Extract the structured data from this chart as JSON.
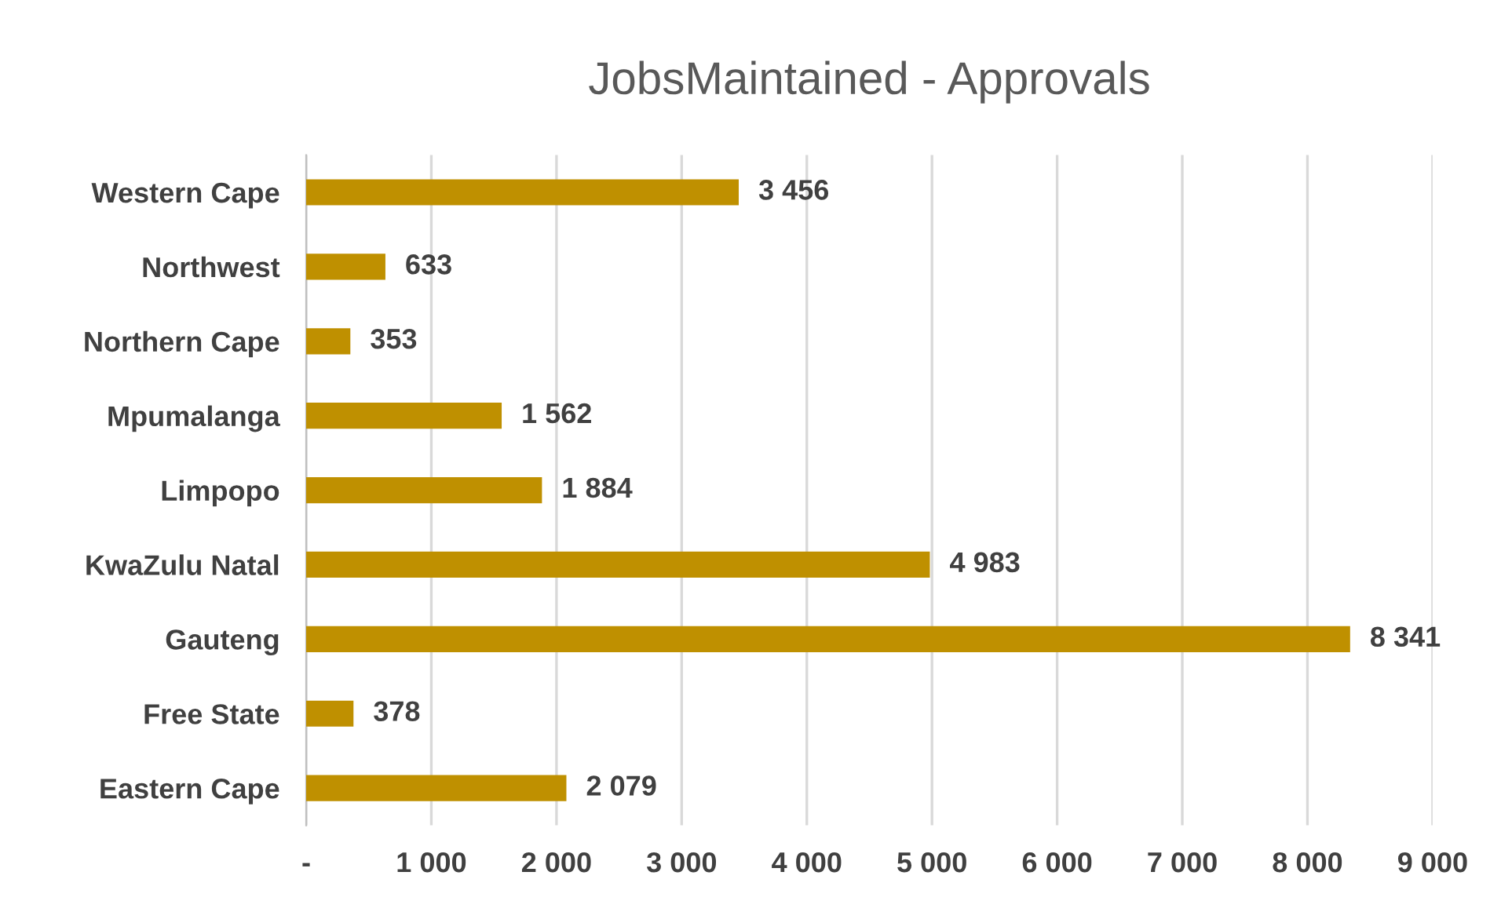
{
  "chart_data": {
    "type": "bar",
    "orientation": "horizontal",
    "title": "JobsMaintained - Approvals",
    "categories": [
      "Western Cape",
      "Northwest",
      "Northern Cape",
      "Mpumalanga",
      "Limpopo",
      "KwaZulu Natal",
      "Gauteng",
      "Free State",
      "Eastern Cape"
    ],
    "values": [
      3456,
      633,
      353,
      1562,
      1884,
      4983,
      8341,
      378,
      2079
    ],
    "value_labels": [
      "3 456",
      "633",
      "353",
      "1 562",
      "1 884",
      "4 983",
      "8 341",
      "378",
      "2 079"
    ],
    "color": "#bf9000",
    "xlim": [
      0,
      9000
    ],
    "xticks": [
      {
        "value": 0,
        "label": "-"
      },
      {
        "value": 1000,
        "label": "1 000"
      },
      {
        "value": 2000,
        "label": "2 000"
      },
      {
        "value": 3000,
        "label": "3 000"
      },
      {
        "value": 4000,
        "label": "4 000"
      },
      {
        "value": 5000,
        "label": "5 000"
      },
      {
        "value": 6000,
        "label": "6 000"
      },
      {
        "value": 7000,
        "label": "7 000"
      },
      {
        "value": 8000,
        "label": "8 000"
      },
      {
        "value": 9000,
        "label": "9 000"
      }
    ],
    "grid": "x",
    "legend": false
  }
}
